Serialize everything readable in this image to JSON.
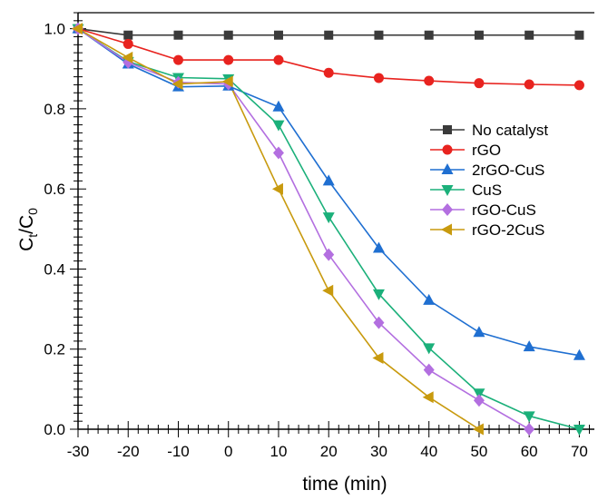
{
  "chart_data": {
    "type": "line",
    "xlabel": "time (min)",
    "ylabel_main": "C",
    "ylabel_sub1": "t",
    "ylabel_slash": "/C",
    "ylabel_sub2": "0",
    "xlim": [
      -30,
      73
    ],
    "ylim": [
      0.0,
      1.04
    ],
    "x_ticks": [
      "-30",
      "-20",
      "-10",
      "0",
      "10",
      "20",
      "30",
      "40",
      "50",
      "60",
      "70"
    ],
    "y_ticks": [
      "0.0",
      "0.2",
      "0.4",
      "0.6",
      "0.8",
      "1.0"
    ],
    "legend_position": "right",
    "grid": false,
    "series": [
      {
        "name": "No catalyst",
        "color": "#3a3a3a",
        "marker": "square",
        "x": [
          -30,
          -20,
          -10,
          0,
          10,
          20,
          30,
          40,
          50,
          60,
          70
        ],
        "y": [
          1.0,
          0.984,
          0.984,
          0.984,
          0.984,
          0.984,
          0.984,
          0.984,
          0.984,
          0.984,
          0.984
        ]
      },
      {
        "name": "rGO",
        "color": "#e8231f",
        "marker": "circle",
        "x": [
          -30,
          -20,
          -10,
          0,
          10,
          20,
          30,
          40,
          50,
          60,
          70
        ],
        "y": [
          1.0,
          0.962,
          0.922,
          0.922,
          0.922,
          0.89,
          0.877,
          0.87,
          0.864,
          0.861,
          0.859
        ]
      },
      {
        "name": "2rGO-CuS",
        "color": "#1f6fd1",
        "marker": "triangle-up",
        "x": [
          -30,
          -20,
          -10,
          0,
          10,
          20,
          30,
          40,
          50,
          60,
          70
        ],
        "y": [
          1.0,
          0.912,
          0.855,
          0.857,
          0.805,
          0.62,
          0.452,
          0.322,
          0.242,
          0.206,
          0.184
        ]
      },
      {
        "name": "CuS",
        "color": "#1bb07a",
        "marker": "triangle-down",
        "x": [
          -30,
          -20,
          -10,
          0,
          10,
          20,
          30,
          40,
          50,
          60,
          70
        ],
        "y": [
          1.0,
          0.918,
          0.878,
          0.875,
          0.76,
          0.53,
          0.338,
          0.203,
          0.09,
          0.033,
          0.0
        ]
      },
      {
        "name": "rGO-CuS",
        "color": "#b36fe0",
        "marker": "diamond",
        "x": [
          -30,
          -20,
          -10,
          0,
          10,
          20,
          30,
          40,
          50,
          60
        ],
        "y": [
          1.0,
          0.916,
          0.866,
          0.862,
          0.69,
          0.436,
          0.266,
          0.148,
          0.072,
          0.0
        ]
      },
      {
        "name": "rGO-2CuS",
        "color": "#c89a0e",
        "marker": "triangle-left",
        "x": [
          -30,
          -20,
          -10,
          0,
          10,
          20,
          30,
          40,
          50
        ],
        "y": [
          1.0,
          0.928,
          0.862,
          0.868,
          0.6,
          0.346,
          0.178,
          0.08,
          0.0
        ]
      }
    ]
  }
}
